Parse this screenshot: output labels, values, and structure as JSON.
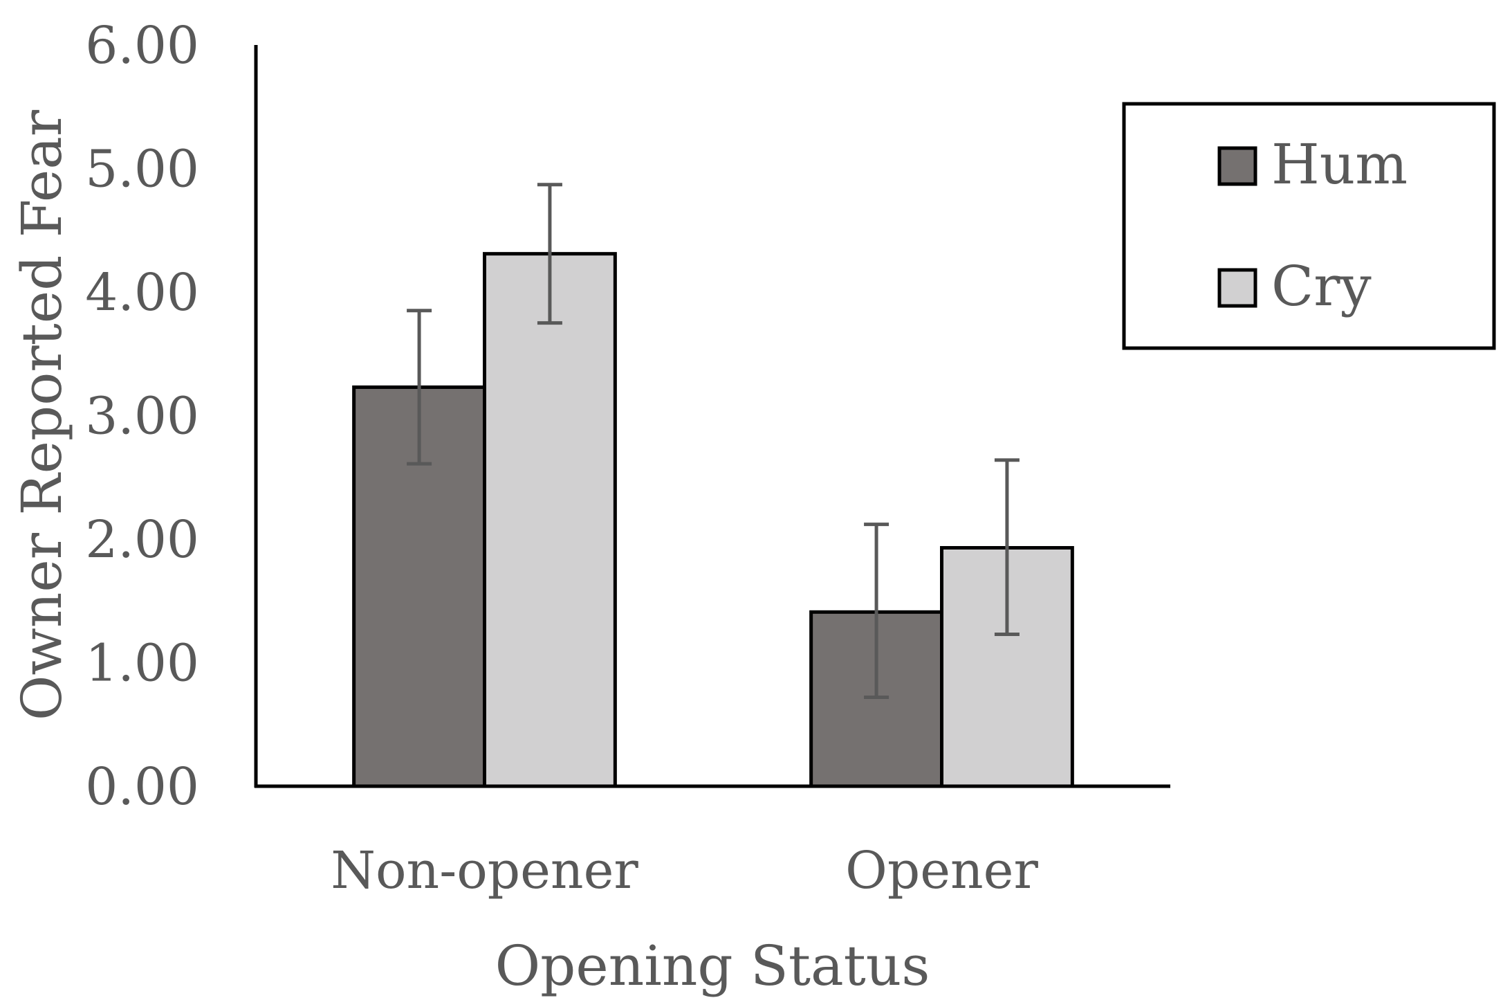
{
  "chart_data": {
    "type": "bar",
    "title": "",
    "xlabel": "Opening Status",
    "ylabel": "Owner Reported Fear",
    "categories": [
      "Non-opener",
      "Opener"
    ],
    "series": [
      {
        "name": "Hum",
        "values": [
          3.23,
          1.41
        ],
        "error": [
          [
            2.61,
            3.85
          ],
          [
            0.72,
            2.12
          ]
        ],
        "color": "#757170"
      },
      {
        "name": "Cry",
        "values": [
          4.31,
          1.93
        ],
        "error": [
          [
            3.75,
            4.87
          ],
          [
            1.23,
            2.64
          ]
        ],
        "color": "#d1d0d1"
      }
    ],
    "ylim": [
      0,
      6
    ],
    "y_ticks": [
      "0.00",
      "1.00",
      "2.00",
      "3.00",
      "4.00",
      "5.00",
      "6.00"
    ],
    "grid": false,
    "legend_position": "top-right"
  }
}
